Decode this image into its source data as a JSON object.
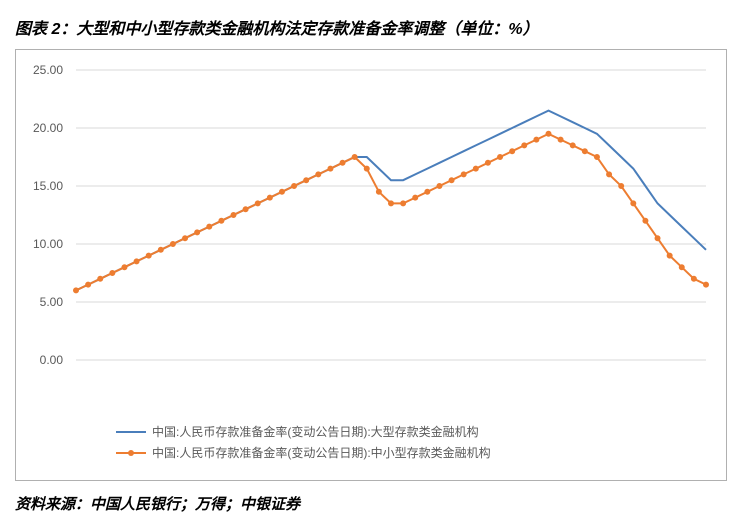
{
  "title": "图表 2：大型和中小型存款类金融机构法定存款准备金率调整（单位：%）",
  "source": "资料来源：中国人民银行；万得；中银证券",
  "chart": {
    "type": "line",
    "background_color": "#ffffff",
    "grid_color": "#d9d9d9",
    "axis_label_color": "#595959",
    "axis_label_fontsize": 12,
    "ylim": [
      0,
      25
    ],
    "ytick_step": 5,
    "yticks": [
      "0.00",
      "5.00",
      "10.00",
      "15.00",
      "20.00",
      "25.00"
    ],
    "n_points": 53,
    "series": [
      {
        "name": "中国:人民币存款准备金率(变动公告日期):大型存款类金融机构",
        "color": "#4a7ebb",
        "line_width": 2,
        "marker": "none",
        "values": [
          6.0,
          6.5,
          7.0,
          7.5,
          8.0,
          8.5,
          9.0,
          9.5,
          10.0,
          10.5,
          11.0,
          11.5,
          12.0,
          12.5,
          13.0,
          13.5,
          14.0,
          14.5,
          15.0,
          15.5,
          16.0,
          16.5,
          17.0,
          17.5,
          17.5,
          16.5,
          15.5,
          15.5,
          16.0,
          16.5,
          17.0,
          17.5,
          18.0,
          18.5,
          19.0,
          19.5,
          20.0,
          20.5,
          21.0,
          21.5,
          21.0,
          20.5,
          20.0,
          19.5,
          18.5,
          17.5,
          16.5,
          15.0,
          13.5,
          12.5,
          11.5,
          10.5,
          9.5
        ]
      },
      {
        "name": "中国:人民币存款准备金率(变动公告日期):中小型存款类金融机构",
        "color": "#ed7d31",
        "line_width": 2,
        "marker": "circle",
        "marker_size": 5,
        "values": [
          6.0,
          6.5,
          7.0,
          7.5,
          8.0,
          8.5,
          9.0,
          9.5,
          10.0,
          10.5,
          11.0,
          11.5,
          12.0,
          12.5,
          13.0,
          13.5,
          14.0,
          14.5,
          15.0,
          15.5,
          16.0,
          16.5,
          17.0,
          17.5,
          16.5,
          14.5,
          13.5,
          13.5,
          14.0,
          14.5,
          15.0,
          15.5,
          16.0,
          16.5,
          17.0,
          17.5,
          18.0,
          18.5,
          19.0,
          19.5,
          19.0,
          18.5,
          18.0,
          17.5,
          16.0,
          15.0,
          13.5,
          12.0,
          10.5,
          9.0,
          8.0,
          7.0,
          6.5
        ]
      }
    ],
    "legend_position": "bottom"
  }
}
